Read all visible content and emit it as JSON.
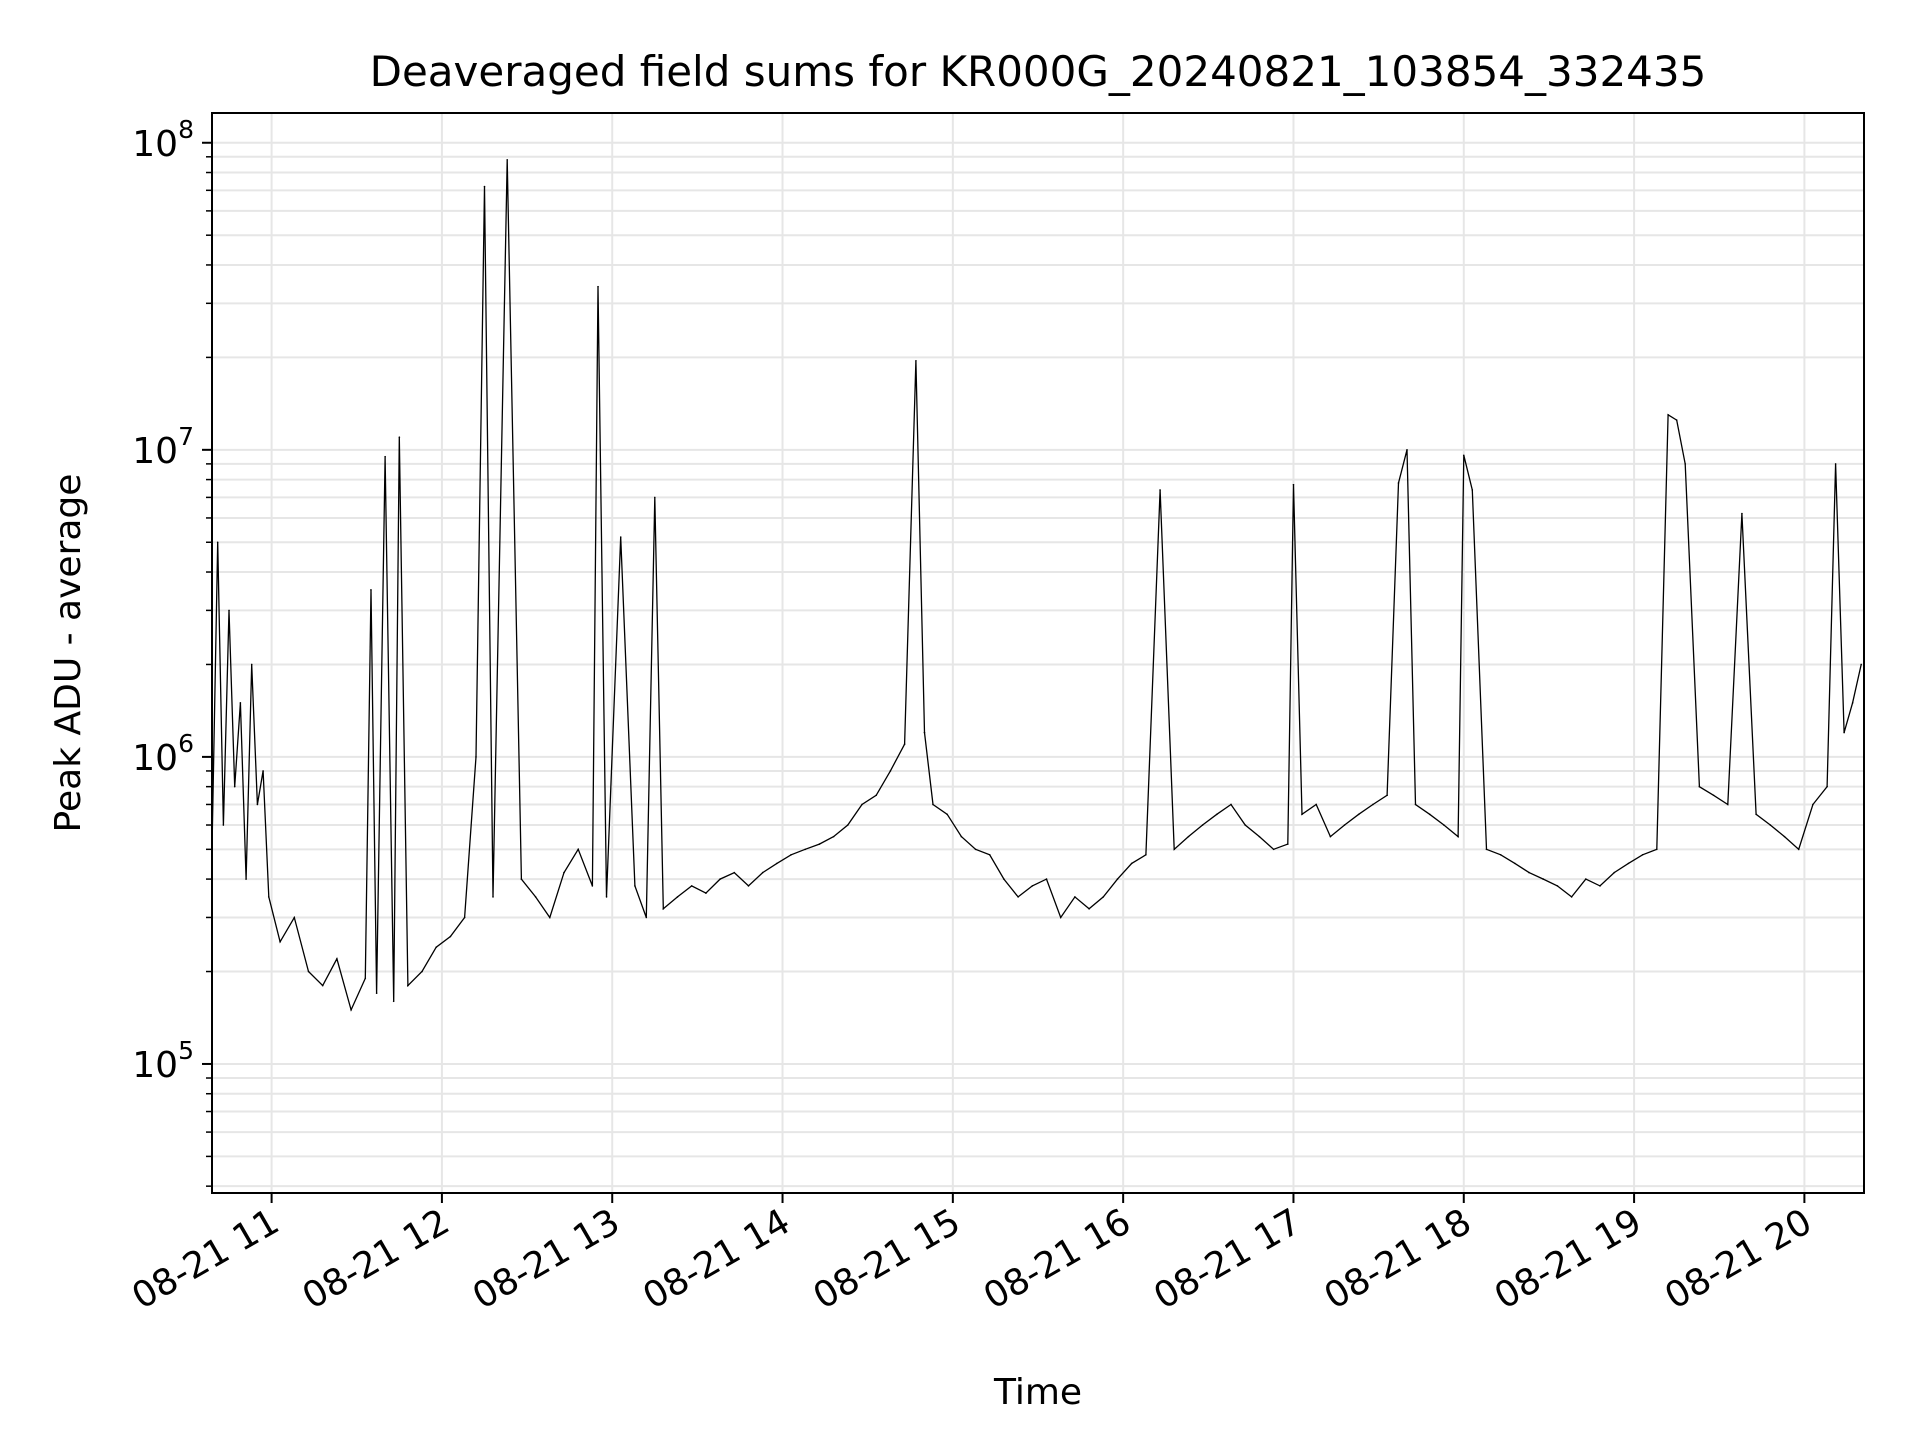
{
  "chart_data": {
    "type": "line",
    "title": "Deaveraged field sums for KR000G_20240821_103854_332435",
    "xlabel": "Time",
    "ylabel": "Peak ADU - average",
    "yscale": "log",
    "ylim": [
      38000,
      125000000
    ],
    "xlim": [
      "2024-08-21 10:39",
      "2024-08-21 20:21"
    ],
    "grid": true,
    "line_color": "#000000",
    "grid_color": "#e6e6e6",
    "x_ticks": [
      {
        "value": "2024-08-21 11:00",
        "label": "08-21 11"
      },
      {
        "value": "2024-08-21 12:00",
        "label": "08-21 12"
      },
      {
        "value": "2024-08-21 13:00",
        "label": "08-21 13"
      },
      {
        "value": "2024-08-21 14:00",
        "label": "08-21 14"
      },
      {
        "value": "2024-08-21 15:00",
        "label": "08-21 15"
      },
      {
        "value": "2024-08-21 16:00",
        "label": "08-21 16"
      },
      {
        "value": "2024-08-21 17:00",
        "label": "08-21 17"
      },
      {
        "value": "2024-08-21 18:00",
        "label": "08-21 18"
      },
      {
        "value": "2024-08-21 19:00",
        "label": "08-21 19"
      },
      {
        "value": "2024-08-21 20:00",
        "label": "08-21 20"
      }
    ],
    "y_ticks": [
      {
        "value": 100000,
        "base": "10",
        "exp": "5"
      },
      {
        "value": 1000000,
        "base": "10",
        "exp": "6"
      },
      {
        "value": 10000000,
        "base": "10",
        "exp": "7"
      },
      {
        "value": 100000000,
        "base": "10",
        "exp": "8"
      }
    ],
    "series": [
      {
        "x": [
          "10:39",
          "10:41",
          "10:43",
          "10:45",
          "10:47",
          "10:49",
          "10:51",
          "10:53",
          "10:55",
          "10:57",
          "10:59",
          "11:03",
          "11:08",
          "11:13",
          "11:18",
          "11:23",
          "11:28",
          "11:33",
          "11:35",
          "11:37",
          "11:40",
          "11:43",
          "11:45",
          "11:48",
          "11:53",
          "11:58",
          "12:03",
          "12:08",
          "12:12",
          "12:15",
          "12:18",
          "12:23",
          "12:28",
          "12:33",
          "12:38",
          "12:43",
          "12:48",
          "12:53",
          "12:55",
          "12:58",
          "13:03",
          "13:08",
          "13:12",
          "13:15",
          "13:18",
          "13:23",
          "13:28",
          "13:33",
          "13:38",
          "13:43",
          "13:48",
          "13:53",
          "13:58",
          "14:03",
          "14:08",
          "14:13",
          "14:18",
          "14:23",
          "14:28",
          "14:33",
          "14:38",
          "14:43",
          "14:47",
          "14:50",
          "14:53",
          "14:58",
          "15:03",
          "15:08",
          "15:13",
          "15:18",
          "15:23",
          "15:28",
          "15:33",
          "15:38",
          "15:43",
          "15:48",
          "15:53",
          "15:58",
          "16:03",
          "16:08",
          "16:13",
          "16:18",
          "16:23",
          "16:28",
          "16:33",
          "16:38",
          "16:43",
          "16:48",
          "16:53",
          "16:58",
          "17:00",
          "17:03",
          "17:08",
          "17:13",
          "17:18",
          "17:23",
          "17:28",
          "17:33",
          "17:37",
          "17:40",
          "17:43",
          "17:48",
          "17:53",
          "17:58",
          "18:00",
          "18:03",
          "18:08",
          "18:13",
          "18:18",
          "18:23",
          "18:28",
          "18:33",
          "18:38",
          "18:43",
          "18:48",
          "18:53",
          "18:58",
          "19:03",
          "19:08",
          "19:12",
          "19:15",
          "19:18",
          "19:23",
          "19:28",
          "19:33",
          "19:38",
          "19:43",
          "19:48",
          "19:53",
          "19:58",
          "20:03",
          "20:08",
          "20:11",
          "20:14",
          "20:17",
          "20:20"
        ],
        "y": [
          500000,
          5000000,
          600000,
          3000000,
          800000,
          1500000,
          400000,
          2000000,
          700000,
          900000,
          350000,
          250000,
          300000,
          200000,
          180000,
          220000,
          150000,
          190000,
          3500000,
          170000,
          9500000,
          160000,
          11000000,
          180000,
          200000,
          240000,
          260000,
          300000,
          1000000,
          72000000,
          350000,
          88000000,
          400000,
          350000,
          300000,
          420000,
          500000,
          380000,
          34000000,
          350000,
          5200000,
          380000,
          300000,
          7000000,
          320000,
          350000,
          380000,
          360000,
          400000,
          420000,
          380000,
          420000,
          450000,
          480000,
          500000,
          520000,
          550000,
          600000,
          700000,
          750000,
          900000,
          1100000,
          19500000,
          1200000,
          700000,
          650000,
          550000,
          500000,
          480000,
          400000,
          350000,
          380000,
          400000,
          300000,
          350000,
          320000,
          350000,
          400000,
          450000,
          480000,
          7400000,
          500000,
          550000,
          600000,
          650000,
          700000,
          600000,
          550000,
          500000,
          520000,
          7700000,
          650000,
          700000,
          550000,
          600000,
          650000,
          700000,
          750000,
          7800000,
          10000000,
          700000,
          650000,
          600000,
          550000,
          9600000,
          7400000,
          500000,
          480000,
          450000,
          420000,
          400000,
          380000,
          350000,
          400000,
          380000,
          420000,
          450000,
          480000,
          500000,
          13000000,
          12500000,
          9000000,
          800000,
          750000,
          700000,
          6200000,
          650000,
          600000,
          550000,
          500000,
          700000,
          800000,
          9000000,
          1200000,
          1500000,
          2000000
        ]
      }
    ]
  }
}
